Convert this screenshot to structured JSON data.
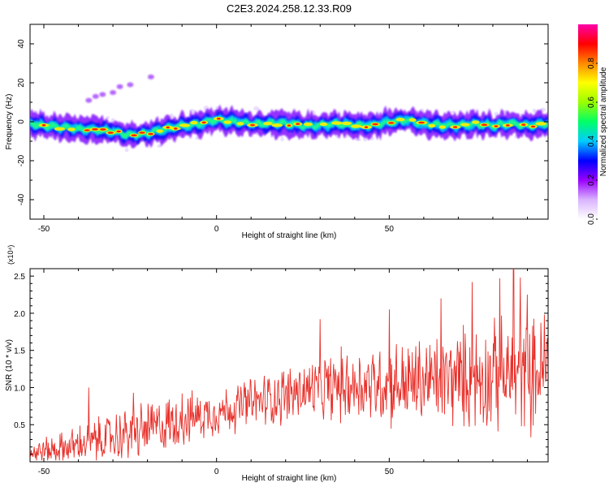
{
  "title": "C2E3.2024.258.12.33.R09",
  "chart_data": [
    {
      "type": "heatmap",
      "xlabel": "Height of straight line (km)",
      "ylabel": "Frequency (Hz)",
      "xlim": [
        -54,
        96
      ],
      "ylim": [
        -50,
        50
      ],
      "xticks": [
        -50,
        0,
        50
      ],
      "yticks": [
        -40,
        -20,
        0,
        20,
        40
      ],
      "colorbar": {
        "label": "Normalized spectral amplitude",
        "range": [
          0,
          1
        ],
        "ticks": [
          "0.0",
          "0.2",
          "0.4",
          "0.6",
          "0.8"
        ],
        "colors": [
          "#ffffff",
          "#d9b3ff",
          "#9900ff",
          "#0000ff",
          "#00ccff",
          "#00ff66",
          "#99ff00",
          "#ffff00",
          "#ff8800",
          "#ff0000",
          "#ff00aa"
        ]
      },
      "ridge": {
        "x": [
          -54,
          -45,
          -35,
          -30,
          -25,
          -20,
          -15,
          -10,
          -5,
          0,
          5,
          10,
          15,
          20,
          25,
          30,
          35,
          40,
          45,
          50,
          55,
          60,
          65,
          70,
          75,
          80,
          85,
          90,
          96
        ],
        "hz": [
          -1,
          -3,
          -4,
          -5,
          -7,
          -6,
          -4,
          -2,
          -1,
          1,
          0,
          -1,
          -1,
          -1,
          -2,
          -2,
          -1,
          -2,
          -2,
          0,
          1,
          -1,
          -2,
          -2,
          -1,
          -2,
          -1,
          -2,
          -1
        ]
      },
      "faint_track": {
        "x": [
          -37,
          -35,
          -33,
          -30,
          -28,
          -25,
          -19
        ],
        "hz": [
          11,
          13,
          14,
          15,
          18,
          19,
          23
        ]
      }
    },
    {
      "type": "line",
      "xlabel": "Height of straight line (km)",
      "ylabel": "SNR (10 * v/v)",
      "multiplier": "(x10⁴)",
      "xlim": [
        -54,
        96
      ],
      "ylim": [
        0,
        2.6
      ],
      "xticks": [
        -50,
        0,
        50
      ],
      "yticks": [
        0.5,
        1.0,
        1.5,
        2.0,
        2.5
      ],
      "ytick_labels": [
        "0.5",
        "1.0",
        "1.5",
        "2.0",
        "2.5"
      ],
      "color": "#e8302a",
      "series": [
        {
          "x": [
            -54,
            -45,
            -35,
            -25,
            -15,
            -5,
            5,
            15,
            25,
            35,
            45,
            55,
            65,
            75,
            85,
            96
          ],
          "base": [
            0.12,
            0.18,
            0.28,
            0.38,
            0.5,
            0.62,
            0.72,
            0.85,
            0.95,
            1.02,
            1.05,
            1.05,
            1.1,
            1.15,
            1.15,
            1.2
          ],
          "amp": [
            0.15,
            0.2,
            0.28,
            0.35,
            0.35,
            0.3,
            0.3,
            0.35,
            0.4,
            0.45,
            0.5,
            0.55,
            0.6,
            0.65,
            0.7,
            0.7
          ]
        }
      ],
      "peaks": [
        [
          -37,
          1.0
        ],
        [
          -24,
          0.93
        ],
        [
          -10,
          0.92
        ],
        [
          8,
          1.07
        ],
        [
          30,
          1.92
        ],
        [
          50,
          2.05
        ],
        [
          65,
          2.2
        ],
        [
          74,
          2.42
        ],
        [
          82,
          2.47
        ],
        [
          86,
          2.6
        ],
        [
          88,
          2.48
        ],
        [
          90,
          2.25
        ],
        [
          95,
          1.98
        ]
      ]
    }
  ]
}
